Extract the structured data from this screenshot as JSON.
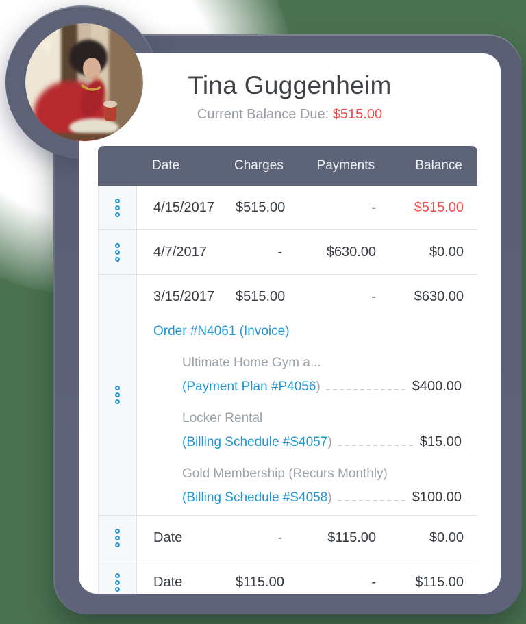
{
  "profile": {
    "name": "Tina Guggenheim",
    "balance_label": "Current Balance Due:",
    "balance_amount": "$515.00"
  },
  "punct": {
    "open": "(",
    "close": ")"
  },
  "icons": {
    "row_handle": "grip-dots-vertical-icon"
  },
  "colors": {
    "page_bg": "#4a7150",
    "frame_slate": "#5c6176",
    "header_bg": "#5d6377",
    "accent_red": "#ee4e4c",
    "link_blue": "#2097d3",
    "handle_blue": "#2b97d6"
  },
  "table": {
    "columns": [
      "Date",
      "Charges",
      "Payments",
      "Balance"
    ],
    "rows": [
      {
        "date": "4/15/2017",
        "charges": "$515.00",
        "payments": "-",
        "balance": "$515.00",
        "balance_red": true
      },
      {
        "date": "4/7/2017",
        "charges": "-",
        "payments": "$630.00",
        "balance": "$0.00"
      },
      {
        "date": "3/15/2017",
        "charges": "$515.00",
        "payments": "-",
        "balance": "$630.00",
        "expanded": {
          "order_link": "Order #N4061 (Invoice)",
          "items": [
            {
              "name": "Ultimate Home Gym a...",
              "link": "Payment Plan #P4056",
              "amount": "$400.00"
            },
            {
              "name": "Locker Rental",
              "link": "Billing Schedule #S4057",
              "amount": "$15.00"
            },
            {
              "name": "Gold Membership (Recurs Monthly)",
              "link": "Billing Schedule #S4058",
              "amount": "$100.00"
            }
          ]
        }
      },
      {
        "date": "Date",
        "charges": "-",
        "payments": "$115.00",
        "balance": "$0.00"
      },
      {
        "date": "Date",
        "charges": "$115.00",
        "payments": "-",
        "balance": "$115.00"
      }
    ]
  }
}
